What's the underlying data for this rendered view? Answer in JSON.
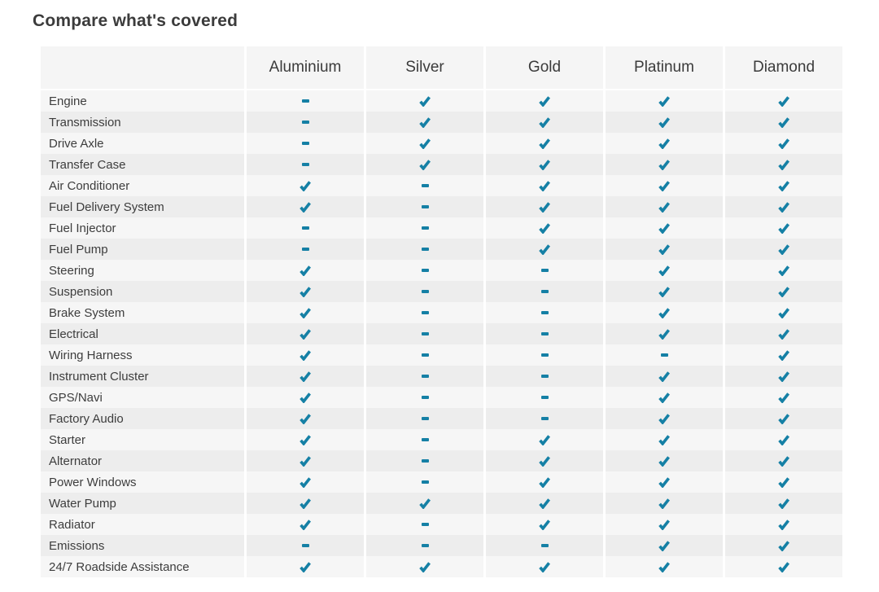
{
  "title": "Compare what's covered",
  "table": {
    "plans": [
      "Aluminium",
      "Silver",
      "Gold",
      "Platinum",
      "Diamond"
    ],
    "rows": [
      {
        "label": "Engine",
        "covered": [
          false,
          true,
          true,
          true,
          true
        ]
      },
      {
        "label": "Transmission",
        "covered": [
          false,
          true,
          true,
          true,
          true
        ]
      },
      {
        "label": "Drive Axle",
        "covered": [
          false,
          true,
          true,
          true,
          true
        ]
      },
      {
        "label": "Transfer Case",
        "covered": [
          false,
          true,
          true,
          true,
          true
        ]
      },
      {
        "label": "Air Conditioner",
        "covered": [
          true,
          false,
          true,
          true,
          true
        ]
      },
      {
        "label": "Fuel Delivery System",
        "covered": [
          true,
          false,
          true,
          true,
          true
        ]
      },
      {
        "label": "Fuel Injector",
        "covered": [
          false,
          false,
          true,
          true,
          true
        ]
      },
      {
        "label": "Fuel Pump",
        "covered": [
          false,
          false,
          true,
          true,
          true
        ]
      },
      {
        "label": "Steering",
        "covered": [
          true,
          false,
          false,
          true,
          true
        ]
      },
      {
        "label": "Suspension",
        "covered": [
          true,
          false,
          false,
          true,
          true
        ]
      },
      {
        "label": "Brake System",
        "covered": [
          true,
          false,
          false,
          true,
          true
        ]
      },
      {
        "label": "Electrical",
        "covered": [
          true,
          false,
          false,
          true,
          true
        ]
      },
      {
        "label": "Wiring Harness",
        "covered": [
          true,
          false,
          false,
          false,
          true
        ]
      },
      {
        "label": "Instrument Cluster",
        "covered": [
          true,
          false,
          false,
          true,
          true
        ]
      },
      {
        "label": "GPS/Navi",
        "covered": [
          true,
          false,
          false,
          true,
          true
        ]
      },
      {
        "label": "Factory Audio",
        "covered": [
          true,
          false,
          false,
          true,
          true
        ]
      },
      {
        "label": "Starter",
        "covered": [
          true,
          false,
          true,
          true,
          true
        ]
      },
      {
        "label": "Alternator",
        "covered": [
          true,
          false,
          true,
          true,
          true
        ]
      },
      {
        "label": "Power Windows",
        "covered": [
          true,
          false,
          true,
          true,
          true
        ]
      },
      {
        "label": "Water Pump",
        "covered": [
          true,
          true,
          true,
          true,
          true
        ]
      },
      {
        "label": "Radiator",
        "covered": [
          true,
          false,
          true,
          true,
          true
        ]
      },
      {
        "label": "Emissions",
        "covered": [
          false,
          false,
          false,
          true,
          true
        ]
      },
      {
        "label": "24/7 Roadside Assistance",
        "covered": [
          true,
          true,
          true,
          true,
          true
        ]
      }
    ],
    "icons": {
      "covered": "check-icon",
      "not_covered": "dash-icon"
    },
    "colors": {
      "accent": "#1580A5",
      "header_bg": "#f5f5f5",
      "stripe_light": "#f6f6f6",
      "stripe_dark": "#ededed",
      "text": "#3d3d3d"
    }
  }
}
